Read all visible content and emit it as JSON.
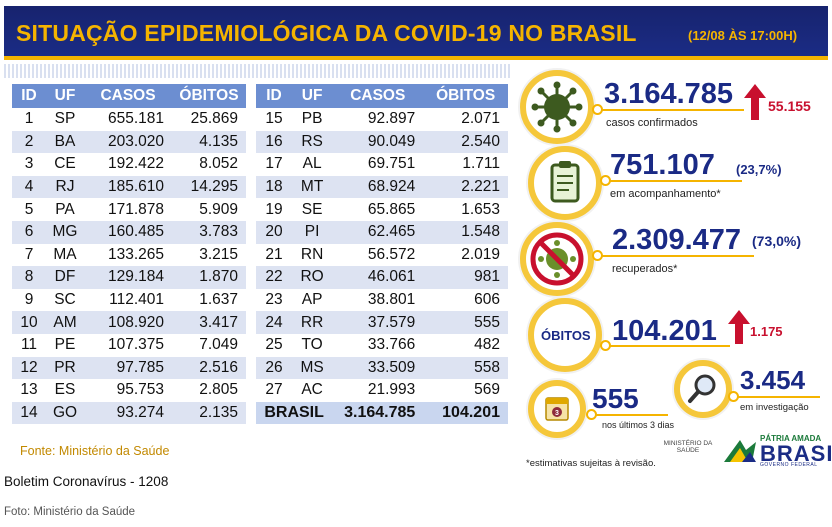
{
  "header": {
    "title": "SITUAÇÃO EPIDEMIOLÓGICA DA COVID-19 NO BRASIL",
    "date": "(12/08 ÀS 17:00H)"
  },
  "table_headers": [
    "ID",
    "UF",
    "CASOS",
    "ÓBITOS"
  ],
  "table_left": [
    [
      "1",
      "SP",
      "655.181",
      "25.869"
    ],
    [
      "2",
      "BA",
      "203.020",
      "4.135"
    ],
    [
      "3",
      "CE",
      "192.422",
      "8.052"
    ],
    [
      "4",
      "RJ",
      "185.610",
      "14.295"
    ],
    [
      "5",
      "PA",
      "171.878",
      "5.909"
    ],
    [
      "6",
      "MG",
      "160.485",
      "3.783"
    ],
    [
      "7",
      "MA",
      "133.265",
      "3.215"
    ],
    [
      "8",
      "DF",
      "129.184",
      "1.870"
    ],
    [
      "9",
      "SC",
      "112.401",
      "1.637"
    ],
    [
      "10",
      "AM",
      "108.920",
      "3.417"
    ],
    [
      "11",
      "PE",
      "107.375",
      "7.049"
    ],
    [
      "12",
      "PR",
      "97.785",
      "2.516"
    ],
    [
      "13",
      "ES",
      "95.753",
      "2.805"
    ],
    [
      "14",
      "GO",
      "93.274",
      "2.135"
    ]
  ],
  "table_right": [
    [
      "15",
      "PB",
      "92.897",
      "2.071"
    ],
    [
      "16",
      "RS",
      "90.049",
      "2.540"
    ],
    [
      "17",
      "AL",
      "69.751",
      "1.711"
    ],
    [
      "18",
      "MT",
      "68.924",
      "2.221"
    ],
    [
      "19",
      "SE",
      "65.865",
      "1.653"
    ],
    [
      "20",
      "PI",
      "62.465",
      "1.548"
    ],
    [
      "21",
      "RN",
      "56.572",
      "2.019"
    ],
    [
      "22",
      "RO",
      "46.061",
      "981"
    ],
    [
      "23",
      "AP",
      "38.801",
      "606"
    ],
    [
      "24",
      "RR",
      "37.579",
      "555"
    ],
    [
      "25",
      "TO",
      "33.766",
      "482"
    ],
    [
      "26",
      "MS",
      "33.509",
      "558"
    ],
    [
      "27",
      "AC",
      "21.993",
      "569"
    ]
  ],
  "total": {
    "label": "BRASIL",
    "casos": "3.164.785",
    "obitos": "104.201"
  },
  "fonte": "Fonte: Ministério da Saúde",
  "metrics": {
    "confirmed": {
      "value": "3.164.785",
      "delta": "55.155",
      "label": "casos confirmados"
    },
    "monitoring": {
      "value": "751.107",
      "pct": "(23,7%)",
      "label": "em acompanhamento*"
    },
    "recovered": {
      "value": "2.309.477",
      "pct": "(73,0%)",
      "label": "recuperados*"
    },
    "deaths": {
      "label": "ÓBITOS",
      "value": "104.201",
      "delta": "1.175"
    },
    "recent": {
      "value": "555",
      "label": "nos últimos 3 dias"
    },
    "investigation": {
      "value": "3.454",
      "label": "em investigação"
    }
  },
  "footnote": "*estimativas sujeitas à revisão.",
  "logos": {
    "ministerio": "MINISTÉRIO DA SAÚDE",
    "patria": "PÁTRIA AMADA",
    "brasil": "BRASIL",
    "gov": "GOVERNO FEDERAL"
  },
  "caption": "Boletim Coronavírus - 1208",
  "photo_credit": "Foto: Ministério da Saúde",
  "colors": {
    "navy": "#1b2c85",
    "gold": "#f5b400",
    "red": "#c8102e",
    "table_header": "#6c8ed1"
  }
}
